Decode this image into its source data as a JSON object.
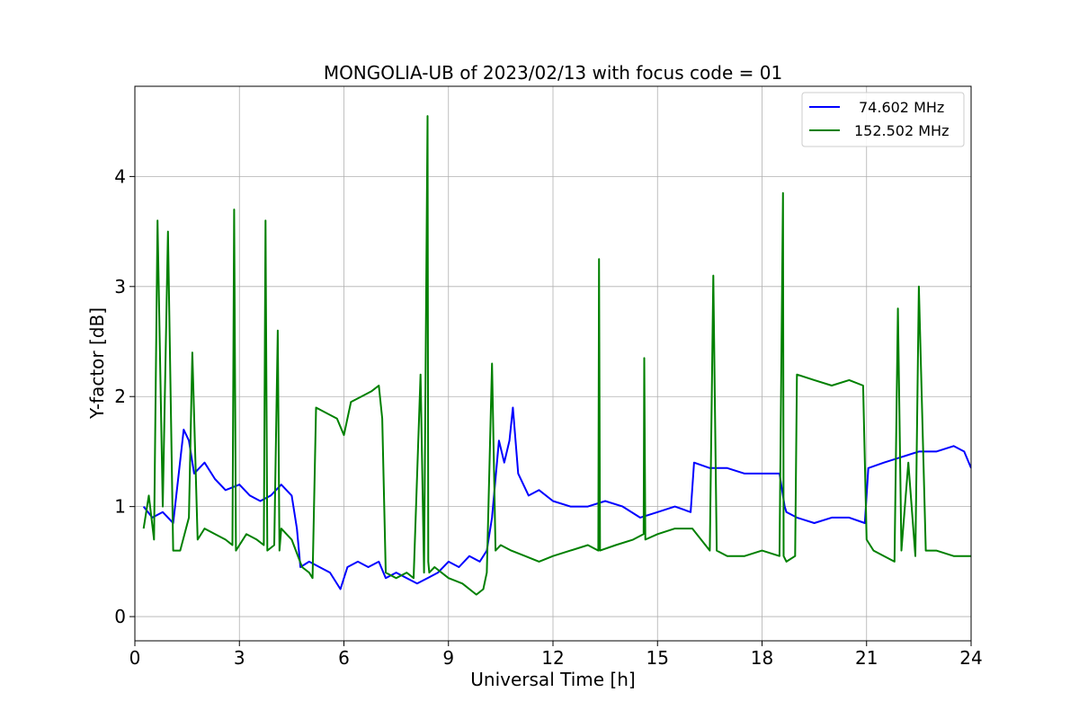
{
  "chart_data": {
    "type": "line",
    "title": "MONGOLIA-UB of 2023/02/13 with focus code = 01",
    "xlabel": "Universal Time [h]",
    "ylabel": "Y-factor [dB]",
    "xlim": [
      0,
      24
    ],
    "ylim": [
      -0.22,
      4.82
    ],
    "xticks": [
      0,
      3,
      6,
      9,
      12,
      15,
      18,
      21,
      24
    ],
    "yticks": [
      0,
      1,
      2,
      3,
      4
    ],
    "grid": true,
    "legend_position": "top-right",
    "series": [
      {
        "name": "74.602 MHz",
        "color": "#0000ff",
        "x": [
          0.25,
          0.5,
          0.8,
          1.1,
          1.4,
          1.55,
          1.7,
          2.0,
          2.3,
          2.6,
          3.0,
          3.3,
          3.6,
          3.9,
          4.2,
          4.5,
          4.65,
          4.75,
          5.0,
          5.3,
          5.6,
          5.9,
          6.1,
          6.4,
          6.7,
          7.0,
          7.2,
          7.5,
          7.8,
          8.1,
          8.4,
          8.7,
          9.0,
          9.3,
          9.6,
          9.9,
          10.1,
          10.25,
          10.45,
          10.6,
          10.75,
          10.85,
          11.0,
          11.3,
          11.6,
          12.0,
          12.5,
          13.0,
          13.5,
          14.0,
          14.5,
          15.0,
          15.5,
          15.95,
          16.05,
          16.5,
          17.0,
          17.5,
          18.0,
          18.5,
          18.65,
          18.7,
          19.0,
          19.5,
          20.0,
          20.5,
          20.95,
          21.05,
          21.5,
          22.0,
          22.5,
          23.0,
          23.5,
          23.8,
          24.0
        ],
        "y": [
          1.0,
          0.9,
          0.95,
          0.85,
          1.7,
          1.6,
          1.3,
          1.4,
          1.25,
          1.15,
          1.2,
          1.1,
          1.05,
          1.1,
          1.2,
          1.1,
          0.8,
          0.45,
          0.5,
          0.45,
          0.4,
          0.25,
          0.45,
          0.5,
          0.45,
          0.5,
          0.35,
          0.4,
          0.35,
          0.3,
          0.35,
          0.4,
          0.5,
          0.45,
          0.55,
          0.5,
          0.6,
          0.9,
          1.6,
          1.4,
          1.6,
          1.9,
          1.3,
          1.1,
          1.15,
          1.05,
          1.0,
          1.0,
          1.05,
          1.0,
          0.9,
          0.95,
          1.0,
          0.95,
          1.4,
          1.35,
          1.35,
          1.3,
          1.3,
          1.3,
          1.0,
          0.95,
          0.9,
          0.85,
          0.9,
          0.9,
          0.85,
          1.35,
          1.4,
          1.45,
          1.5,
          1.5,
          1.55,
          1.5,
          1.35
        ]
      },
      {
        "name": "152.502 MHz",
        "color": "#008000",
        "x": [
          0.25,
          0.4,
          0.55,
          0.65,
          0.8,
          0.95,
          1.1,
          1.3,
          1.55,
          1.65,
          1.8,
          2.0,
          2.3,
          2.6,
          2.8,
          2.85,
          2.9,
          3.2,
          3.5,
          3.7,
          3.75,
          3.8,
          4.0,
          4.1,
          4.15,
          4.2,
          4.5,
          4.8,
          5.0,
          5.1,
          5.2,
          5.5,
          5.8,
          6.0,
          6.2,
          6.5,
          6.8,
          7.0,
          7.1,
          7.2,
          7.5,
          7.8,
          8.0,
          8.2,
          8.3,
          8.4,
          8.42,
          8.45,
          8.6,
          9.0,
          9.4,
          9.8,
          10.0,
          10.1,
          10.25,
          10.35,
          10.5,
          10.8,
          11.2,
          11.6,
          12.0,
          12.5,
          13.0,
          13.3,
          13.32,
          13.35,
          13.8,
          14.3,
          14.6,
          14.62,
          14.65,
          15.0,
          15.5,
          16.0,
          16.5,
          16.6,
          16.7,
          17.0,
          17.5,
          18.0,
          18.5,
          18.6,
          18.62,
          18.7,
          18.95,
          19.0,
          19.5,
          20.0,
          20.5,
          20.9,
          21.0,
          21.2,
          21.5,
          21.8,
          21.9,
          22.0,
          22.2,
          22.4,
          22.5,
          22.7,
          23.0,
          23.5,
          24.0
        ],
        "y": [
          0.8,
          1.1,
          0.7,
          3.6,
          1.0,
          3.5,
          0.6,
          0.6,
          0.9,
          2.4,
          0.7,
          0.8,
          0.75,
          0.7,
          0.65,
          3.7,
          0.6,
          0.75,
          0.7,
          0.65,
          3.6,
          0.6,
          0.65,
          2.6,
          0.6,
          0.8,
          0.7,
          0.45,
          0.4,
          0.35,
          1.9,
          1.85,
          1.8,
          1.65,
          1.95,
          2.0,
          2.05,
          2.1,
          1.8,
          0.4,
          0.35,
          0.4,
          0.35,
          2.2,
          0.4,
          4.55,
          0.5,
          0.4,
          0.45,
          0.35,
          0.3,
          0.2,
          0.25,
          0.4,
          2.3,
          0.6,
          0.65,
          0.6,
          0.55,
          0.5,
          0.55,
          0.6,
          0.65,
          0.6,
          3.25,
          0.6,
          0.65,
          0.7,
          0.75,
          2.35,
          0.7,
          0.75,
          0.8,
          0.8,
          0.6,
          3.1,
          0.6,
          0.55,
          0.55,
          0.6,
          0.55,
          3.85,
          0.55,
          0.5,
          0.55,
          2.2,
          2.15,
          2.1,
          2.15,
          2.1,
          0.7,
          0.6,
          0.55,
          0.5,
          2.8,
          0.6,
          1.4,
          0.55,
          3.0,
          0.6,
          0.6,
          0.55,
          0.55
        ]
      }
    ]
  }
}
